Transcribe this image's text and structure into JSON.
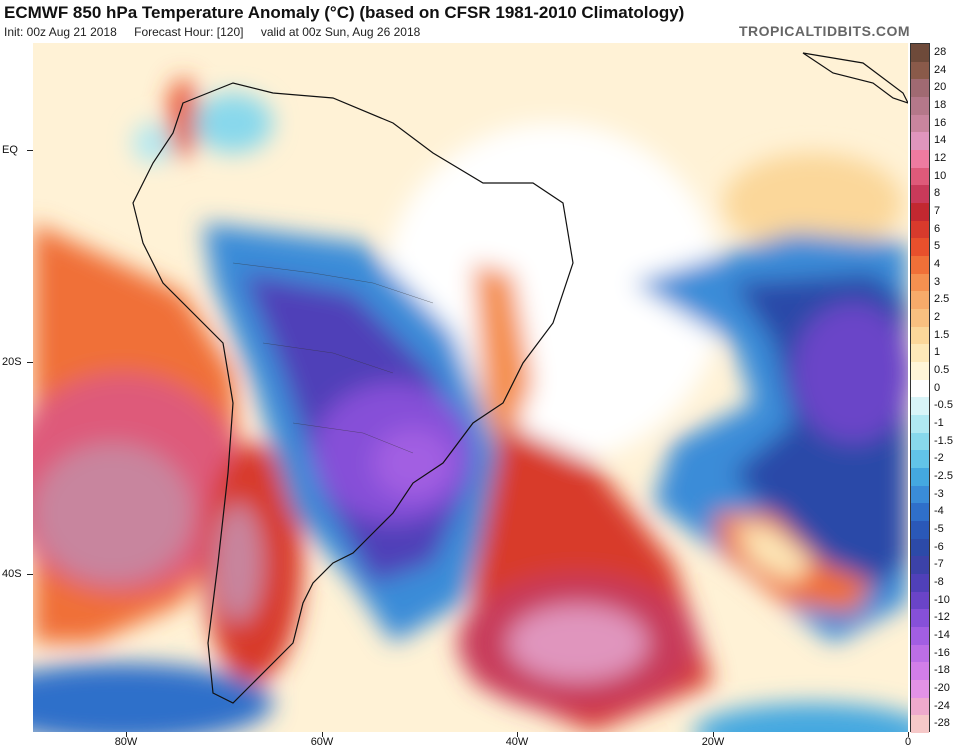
{
  "header": {
    "title": "ECMWF 850 hPa Temperature Anomaly (°C) (based on CFSR 1981-2010 Climatology)",
    "init": "Init: 00z Aug 21 2018",
    "forecast_hour": "Forecast Hour: [120]",
    "valid": "valid at 00z Sun, Aug 26 2018",
    "brand": "TROPICALTIDBITS.COM"
  },
  "axes": {
    "lat_labels": [
      "EQ",
      "20S",
      "40S"
    ],
    "lon_labels": [
      "80W",
      "60W",
      "40W",
      "20W",
      "0"
    ]
  },
  "colorbar": {
    "labels": [
      "28",
      "24",
      "20",
      "18",
      "16",
      "14",
      "12",
      "10",
      "8",
      "7",
      "6",
      "5",
      "4",
      "3",
      "2.5",
      "2",
      "1.5",
      "1",
      "0.5",
      "0",
      "-0.5",
      "-1",
      "-1.5",
      "-2",
      "-2.5",
      "-3",
      "-4",
      "-5",
      "-6",
      "-7",
      "-8",
      "-10",
      "-12",
      "-14",
      "-16",
      "-18",
      "-20",
      "-24",
      "-28"
    ],
    "colors": [
      "#6e4a3a",
      "#8a5a4a",
      "#a06a72",
      "#b4788a",
      "#c8859e",
      "#e095bd",
      "#ee7ba0",
      "#de5a7a",
      "#c83a5a",
      "#c22830",
      "#d83a2c",
      "#e8502c",
      "#f07038",
      "#f49050",
      "#f7aa6a",
      "#f9c080",
      "#fbd79a",
      "#fde8b8",
      "#fff5d8",
      "#ffffff",
      "#d8f4f8",
      "#b0e8f2",
      "#88d8ec",
      "#62c4e8",
      "#44a8e0",
      "#3a8cd8",
      "#2f6fca",
      "#2a58b8",
      "#2c4aa8",
      "#3c42a8",
      "#5040b8",
      "#6a44c8",
      "#8650d8",
      "#a25ee2",
      "#bc6ee6",
      "#d27ee8",
      "#e292e6",
      "#eeaacd",
      "#f6c8c8"
    ]
  }
}
